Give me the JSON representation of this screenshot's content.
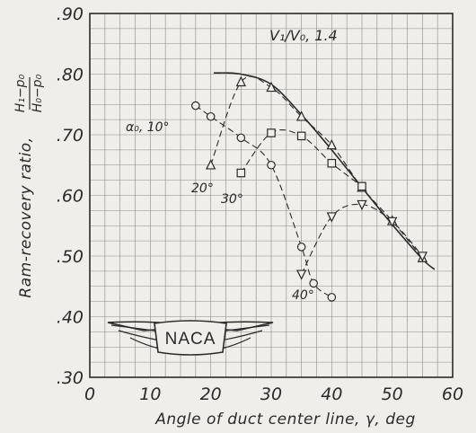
{
  "chart_data": {
    "type": "line",
    "xlabel": "Angle of duct center line, γ, deg",
    "xlim": [
      0,
      60
    ],
    "ylim": [
      0.3,
      0.9
    ],
    "x_ticks": [
      "0",
      "10",
      "20",
      "30",
      "40",
      "50",
      "60"
    ],
    "y_ticks": [
      ".30",
      ".40",
      ".50",
      ".60",
      ".70",
      ".80",
      ".90"
    ],
    "ylabel_text": "Ram-recovery ratio,",
    "ylabel_frac_num": "H₁−p₀",
    "ylabel_frac_den": "H₀−p₀",
    "velocity_ratio": {
      "label": "V₁/V₀, 1.4"
    },
    "envelope": {
      "name": "envelope",
      "points": [
        [
          20.5,
          0.802
        ],
        [
          25,
          0.8
        ],
        [
          30,
          0.783
        ],
        [
          35,
          0.733
        ],
        [
          40,
          0.675
        ],
        [
          45,
          0.613
        ],
        [
          50,
          0.552
        ],
        [
          55,
          0.495
        ],
        [
          57,
          0.478
        ]
      ]
    },
    "series": [
      {
        "name": "α₀, 10°",
        "marker": "circle",
        "values": [
          [
            17.5,
            0.748
          ],
          [
            20,
            0.73
          ],
          [
            25,
            0.695
          ],
          [
            30,
            0.65
          ],
          [
            35,
            0.515
          ],
          [
            37,
            0.455
          ],
          [
            40,
            0.432
          ]
        ]
      },
      {
        "name": "20°",
        "marker": "triangle-up",
        "values": [
          [
            20,
            0.65
          ],
          [
            25,
            0.787
          ],
          [
            30,
            0.778
          ],
          [
            35,
            0.73
          ],
          [
            40,
            0.683
          ],
          [
            45,
            0.613
          ],
          [
            50,
            0.558
          ],
          [
            55,
            0.497
          ]
        ]
      },
      {
        "name": "30°",
        "marker": "square",
        "values": [
          [
            25,
            0.637
          ],
          [
            30,
            0.703
          ],
          [
            35,
            0.698
          ],
          [
            40,
            0.653
          ],
          [
            45,
            0.615
          ]
        ]
      },
      {
        "name": "40°",
        "marker": "triangle-down",
        "values": [
          [
            35,
            0.47
          ],
          [
            40,
            0.565
          ],
          [
            45,
            0.585
          ],
          [
            50,
            0.557
          ],
          [
            55,
            0.5
          ]
        ]
      }
    ],
    "annotations": [
      {
        "text": "α₀, 10°"
      },
      {
        "text": "20°"
      },
      {
        "text": "30°"
      },
      {
        "text": "40°"
      }
    ],
    "grid": true
  },
  "logo": {
    "text": "NACA"
  }
}
